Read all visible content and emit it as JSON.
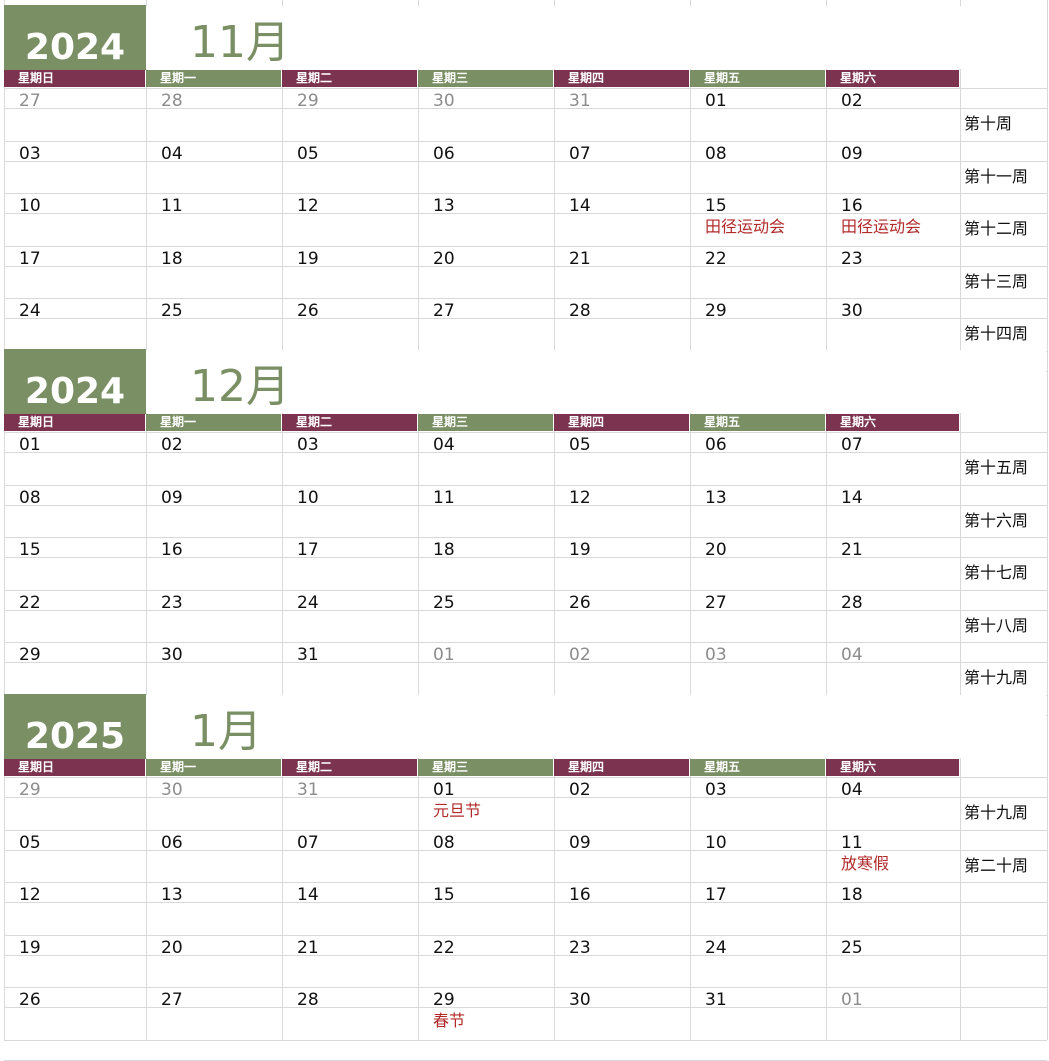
{
  "colors": {
    "green": "#7a8f64",
    "maroon": "#7b3350",
    "event_red": "#b22a2a",
    "other_month_gray": "#8c8c8c",
    "grid": "#d9d9d9"
  },
  "weekday_headers": [
    "星期日",
    "星期一",
    "星期二",
    "星期三",
    "星期四",
    "星期五",
    "星期六"
  ],
  "months": [
    {
      "year": "2024",
      "month": "11月",
      "weeks": [
        {
          "days": [
            {
              "d": "27",
              "other": true
            },
            {
              "d": "28",
              "other": true
            },
            {
              "d": "29",
              "other": true
            },
            {
              "d": "30",
              "other": true
            },
            {
              "d": "31",
              "other": true
            },
            {
              "d": "01"
            },
            {
              "d": "02"
            }
          ],
          "week_label": "第十周"
        },
        {
          "days": [
            {
              "d": "03"
            },
            {
              "d": "04"
            },
            {
              "d": "05"
            },
            {
              "d": "06"
            },
            {
              "d": "07"
            },
            {
              "d": "08"
            },
            {
              "d": "09"
            }
          ],
          "week_label": "第十一周"
        },
        {
          "days": [
            {
              "d": "10"
            },
            {
              "d": "11"
            },
            {
              "d": "12"
            },
            {
              "d": "13"
            },
            {
              "d": "14"
            },
            {
              "d": "15",
              "event": "田径运动会"
            },
            {
              "d": "16",
              "event": "田径运动会"
            }
          ],
          "week_label": "第十二周"
        },
        {
          "days": [
            {
              "d": "17"
            },
            {
              "d": "18"
            },
            {
              "d": "19"
            },
            {
              "d": "20"
            },
            {
              "d": "21"
            },
            {
              "d": "22"
            },
            {
              "d": "23"
            }
          ],
          "week_label": "第十三周"
        },
        {
          "days": [
            {
              "d": "24"
            },
            {
              "d": "25"
            },
            {
              "d": "26"
            },
            {
              "d": "27"
            },
            {
              "d": "28"
            },
            {
              "d": "29"
            },
            {
              "d": "30"
            }
          ],
          "week_label": "第十四周"
        }
      ]
    },
    {
      "year": "2024",
      "month": "12月",
      "weeks": [
        {
          "days": [
            {
              "d": "01"
            },
            {
              "d": "02"
            },
            {
              "d": "03"
            },
            {
              "d": "04"
            },
            {
              "d": "05"
            },
            {
              "d": "06"
            },
            {
              "d": "07"
            }
          ],
          "week_label": "第十五周"
        },
        {
          "days": [
            {
              "d": "08"
            },
            {
              "d": "09"
            },
            {
              "d": "10"
            },
            {
              "d": "11"
            },
            {
              "d": "12"
            },
            {
              "d": "13"
            },
            {
              "d": "14"
            }
          ],
          "week_label": "第十六周"
        },
        {
          "days": [
            {
              "d": "15"
            },
            {
              "d": "16"
            },
            {
              "d": "17"
            },
            {
              "d": "18"
            },
            {
              "d": "19"
            },
            {
              "d": "20"
            },
            {
              "d": "21"
            }
          ],
          "week_label": "第十七周"
        },
        {
          "days": [
            {
              "d": "22"
            },
            {
              "d": "23"
            },
            {
              "d": "24"
            },
            {
              "d": "25"
            },
            {
              "d": "26"
            },
            {
              "d": "27"
            },
            {
              "d": "28"
            }
          ],
          "week_label": "第十八周"
        },
        {
          "days": [
            {
              "d": "29"
            },
            {
              "d": "30"
            },
            {
              "d": "31"
            },
            {
              "d": "01",
              "other": true
            },
            {
              "d": "02",
              "other": true
            },
            {
              "d": "03",
              "other": true
            },
            {
              "d": "04",
              "other": true
            }
          ],
          "week_label": "第十九周"
        }
      ]
    },
    {
      "year": "2025",
      "month": "1月",
      "weeks": [
        {
          "days": [
            {
              "d": "29",
              "other": true
            },
            {
              "d": "30",
              "other": true
            },
            {
              "d": "31",
              "other": true
            },
            {
              "d": "01",
              "event": "元旦节"
            },
            {
              "d": "02"
            },
            {
              "d": "03"
            },
            {
              "d": "04"
            }
          ],
          "week_label": "第十九周"
        },
        {
          "days": [
            {
              "d": "05"
            },
            {
              "d": "06"
            },
            {
              "d": "07"
            },
            {
              "d": "08"
            },
            {
              "d": "09"
            },
            {
              "d": "10"
            },
            {
              "d": "11",
              "event": "放寒假"
            }
          ],
          "week_label": "第二十周"
        },
        {
          "days": [
            {
              "d": "12"
            },
            {
              "d": "13"
            },
            {
              "d": "14"
            },
            {
              "d": "15"
            },
            {
              "d": "16"
            },
            {
              "d": "17"
            },
            {
              "d": "18"
            }
          ],
          "week_label": ""
        },
        {
          "days": [
            {
              "d": "19"
            },
            {
              "d": "20"
            },
            {
              "d": "21"
            },
            {
              "d": "22"
            },
            {
              "d": "23"
            },
            {
              "d": "24"
            },
            {
              "d": "25"
            }
          ],
          "week_label": ""
        },
        {
          "days": [
            {
              "d": "26"
            },
            {
              "d": "27"
            },
            {
              "d": "28"
            },
            {
              "d": "29",
              "event": "春节"
            },
            {
              "d": "30"
            },
            {
              "d": "31"
            },
            {
              "d": "01",
              "other": true
            }
          ],
          "week_label": ""
        }
      ]
    }
  ]
}
